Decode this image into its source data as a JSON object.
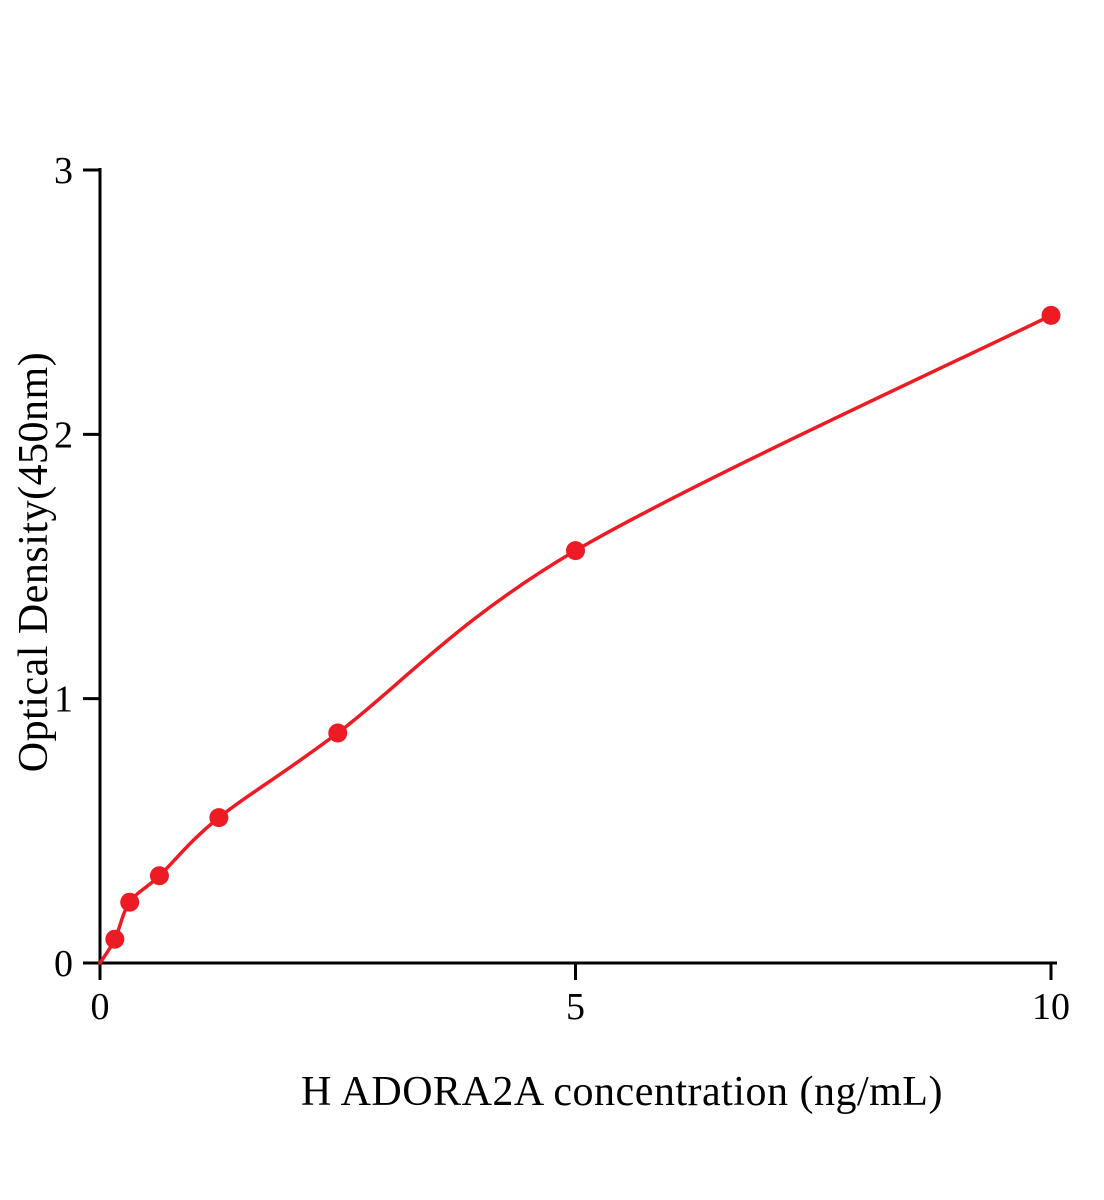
{
  "chart_data": {
    "type": "scatter",
    "title": "",
    "xlabel": "H ADORA2A concentration (ng/mL)",
    "ylabel": "Optical Density(450nm)",
    "xlim": [
      0,
      10
    ],
    "ylim": [
      0,
      3
    ],
    "xticks": [
      0,
      5,
      10
    ],
    "yticks": [
      0,
      1,
      2,
      3
    ],
    "x": [
      0.156,
      0.3125,
      0.625,
      1.25,
      2.5,
      5,
      10
    ],
    "y": [
      0.09,
      0.23,
      0.33,
      0.55,
      0.87,
      1.56,
      2.45
    ],
    "curve_start": [
      0,
      0
    ],
    "point_color": "#ed1c24",
    "curve_color": "#ed1c24",
    "axis_color": "#000000",
    "grid": false,
    "legend": "none"
  }
}
